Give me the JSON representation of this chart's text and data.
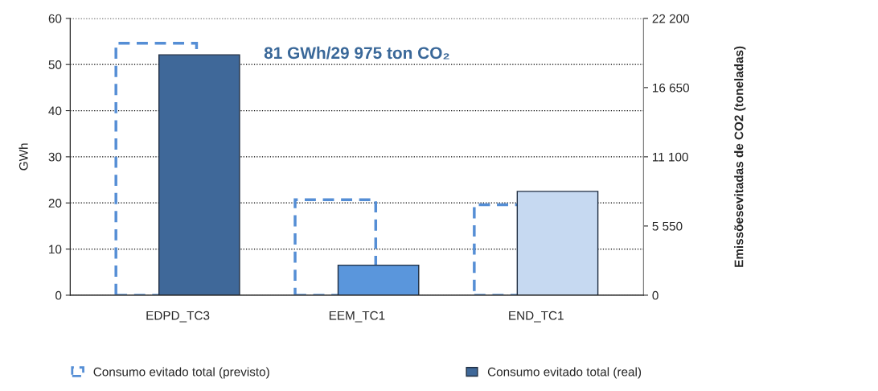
{
  "chart_data": {
    "type": "bar",
    "categories": [
      "EDPD_TC3",
      "EEM_TC1",
      "END_TC1"
    ],
    "series": [
      {
        "name": "Consumo evitado total (previsto)",
        "color": "#558ed5",
        "line_style": "dashed",
        "values": [
          54.6,
          20.7,
          19.6
        ]
      },
      {
        "name": "Consumo evitado total (real)",
        "color": "#3f6899",
        "colors": [
          "#3f6899",
          "#5a96dc",
          "#c6d9f1"
        ],
        "values": [
          52.1,
          6.5,
          22.5
        ]
      }
    ],
    "ylabel": "GWh",
    "y2label": "Emissõesevitadas de CO2 (toneladas)",
    "ylim": [
      0,
      60
    ],
    "yticks": [
      0,
      10,
      20,
      30,
      40,
      50,
      60
    ],
    "y2lim": [
      0,
      22200
    ],
    "y2ticks": [
      {
        "value": 0,
        "label": "0"
      },
      {
        "value": 5550,
        "label": "5 550"
      },
      {
        "value": 11100,
        "label": "11 100"
      },
      {
        "value": 16650,
        "label": "16 650"
      },
      {
        "value": 22200,
        "label": "22 200"
      }
    ],
    "annotations": [
      "81 GWh/29 975 ton CO₂"
    ],
    "grid": "y",
    "legend": "bottom"
  }
}
